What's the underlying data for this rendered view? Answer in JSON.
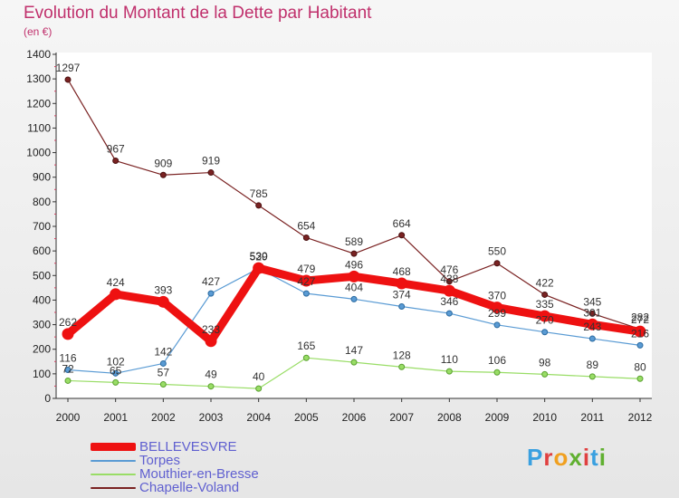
{
  "header": {
    "title": "Evolution du Montant de la Dette par Habitant",
    "subtitle": "(en €)"
  },
  "logo": {
    "text": "Proxiti"
  },
  "chart_data": {
    "type": "line",
    "title": "Evolution du Montant de la Dette par Habitant",
    "subtitle": "(en €)",
    "xlabel": "",
    "ylabel": "",
    "ylim": [
      0,
      1400
    ],
    "yticks": [
      0,
      100,
      200,
      300,
      400,
      500,
      600,
      700,
      800,
      900,
      1000,
      1100,
      1200,
      1300,
      1400
    ],
    "grid": false,
    "legend": "bottom-left",
    "categories": [
      "2000",
      "2001",
      "2002",
      "2003",
      "2004",
      "2005",
      "2006",
      "2007",
      "2008",
      "2009",
      "2010",
      "2011",
      "2012"
    ],
    "series": [
      {
        "name": "BELLEVESVRE",
        "color": "#ee1111",
        "values": [
          262,
          424,
          393,
          233,
          530,
          479,
          496,
          468,
          438,
          370,
          335,
          301,
          272
        ]
      },
      {
        "name": "Torpes",
        "color": "#5a9bd4",
        "values": [
          116,
          102,
          142,
          427,
          529,
          427,
          404,
          374,
          346,
          299,
          270,
          243,
          216
        ]
      },
      {
        "name": "Mouthier-en-Bresse",
        "color": "#99dd66",
        "values": [
          72,
          65,
          57,
          49,
          40,
          165,
          147,
          128,
          110,
          106,
          98,
          89,
          80
        ]
      },
      {
        "name": "Chapelle-Voland",
        "color": "#7a2222",
        "values": [
          1297,
          967,
          909,
          919,
          785,
          654,
          589,
          664,
          476,
          550,
          422,
          345,
          282
        ]
      }
    ]
  }
}
